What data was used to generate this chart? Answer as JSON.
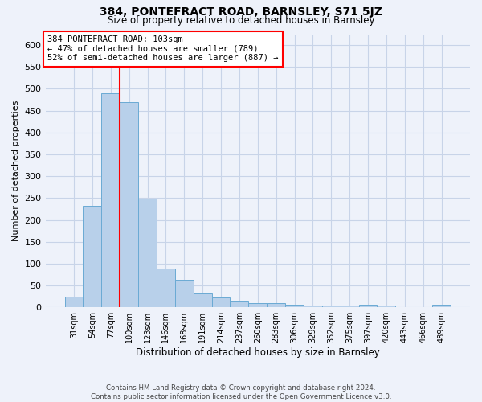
{
  "title": "384, PONTEFRACT ROAD, BARNSLEY, S71 5JZ",
  "subtitle": "Size of property relative to detached houses in Barnsley",
  "xlabel": "Distribution of detached houses by size in Barnsley",
  "ylabel": "Number of detached properties",
  "footer_line1": "Contains HM Land Registry data © Crown copyright and database right 2024.",
  "footer_line2": "Contains public sector information licensed under the Open Government Licence v3.0.",
  "categories": [
    "31sqm",
    "54sqm",
    "77sqm",
    "100sqm",
    "123sqm",
    "146sqm",
    "168sqm",
    "191sqm",
    "214sqm",
    "237sqm",
    "260sqm",
    "283sqm",
    "306sqm",
    "329sqm",
    "352sqm",
    "375sqm",
    "397sqm",
    "420sqm",
    "443sqm",
    "466sqm",
    "489sqm"
  ],
  "values": [
    25,
    232,
    490,
    470,
    248,
    88,
    63,
    32,
    22,
    13,
    10,
    9,
    6,
    4,
    4,
    4,
    6,
    4,
    0,
    0,
    5
  ],
  "bar_color": "#b8d0ea",
  "bar_edge_color": "#6aaad4",
  "grid_color": "#c8d4e8",
  "background_color": "#eef2fa",
  "vline_x_index": 2,
  "vline_color": "red",
  "annotation_text": "384 PONTEFRACT ROAD: 103sqm\n← 47% of detached houses are smaller (789)\n52% of semi-detached houses are larger (887) →",
  "annotation_box_color": "white",
  "annotation_box_edge": "red",
  "ylim": [
    0,
    625
  ],
  "yticks": [
    0,
    50,
    100,
    150,
    200,
    250,
    300,
    350,
    400,
    450,
    500,
    550,
    600
  ]
}
